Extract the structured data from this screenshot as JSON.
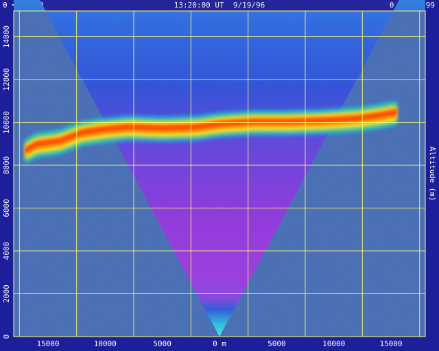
{
  "header": {
    "left": "θ = 91.99",
    "center": "13:20:00 UT  9/19/96",
    "right": "θ = 271.99"
  },
  "chart_data": {
    "type": "heatmap",
    "title": "",
    "xlabel": "",
    "x_axis_unit": "m",
    "ylabel": "Altitude (m)",
    "x_ticks": [
      {
        "value": -15000,
        "label": "15000"
      },
      {
        "value": -10000,
        "label": "10000"
      },
      {
        "value": -5000,
        "label": "5000"
      },
      {
        "value": 0,
        "label": "0 m"
      },
      {
        "value": 5000,
        "label": "5000"
      },
      {
        "value": 10000,
        "label": "10000"
      },
      {
        "value": 15000,
        "label": "15000"
      }
    ],
    "y_ticks": [
      {
        "value": 0,
        "label": "0"
      },
      {
        "value": 2000,
        "label": "2000"
      },
      {
        "value": 4000,
        "label": "4000"
      },
      {
        "value": 6000,
        "label": "6000"
      },
      {
        "value": 8000,
        "label": "8000"
      },
      {
        "value": 10000,
        "label": "10000"
      },
      {
        "value": 12000,
        "label": "12000"
      },
      {
        "value": 14000,
        "label": "14000"
      }
    ],
    "xlim": [
      -18000,
      18000
    ],
    "ylim": [
      0,
      15200
    ],
    "grid": true,
    "scan_angles_deg": [
      91.99,
      271.99
    ],
    "cloud_layer": [
      {
        "x": -17000,
        "y": 8700
      },
      {
        "x": -16000,
        "y": 9000
      },
      {
        "x": -14000,
        "y": 9150
      },
      {
        "x": -12000,
        "y": 9550
      },
      {
        "x": -10000,
        "y": 9700
      },
      {
        "x": -8000,
        "y": 9800
      },
      {
        "x": -5000,
        "y": 9750
      },
      {
        "x": -2000,
        "y": 9800
      },
      {
        "x": 0,
        "y": 9950
      },
      {
        "x": 3000,
        "y": 10050
      },
      {
        "x": 6000,
        "y": 10050
      },
      {
        "x": 9000,
        "y": 10100
      },
      {
        "x": 12000,
        "y": 10200
      },
      {
        "x": 14000,
        "y": 10350
      },
      {
        "x": 15500,
        "y": 10500
      }
    ],
    "colors": {
      "background": "#1d1f9a",
      "outside_scan": "#4a73b9",
      "grid": "#ffff66",
      "upper_noise": "#2f73ee",
      "lower_noise": "#a035e6",
      "cloud_core": "#ff4a00",
      "cloud_edge": "#ffe020"
    }
  }
}
